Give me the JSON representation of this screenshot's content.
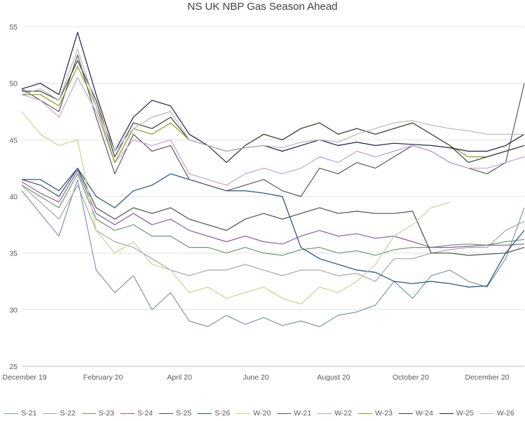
{
  "title": "NS UK NBP Gas Season Ahead",
  "chart_data": {
    "type": "line",
    "title": "NS UK NBP Gas Season Ahead",
    "xlabel": "",
    "ylabel": "",
    "ylim": [
      25,
      55
    ],
    "yticks": [
      25,
      30,
      35,
      40,
      45,
      50,
      55
    ],
    "xtick_labels": [
      "December 19",
      "February 20",
      "April 20",
      "June 20",
      "August 20",
      "October 20",
      "December 20"
    ],
    "grid": "horizontal",
    "legend": "bottom",
    "x_start": "December 19",
    "x_end": "December 20",
    "series": [
      {
        "name": "S-21",
        "color": "#7f98a8",
        "values": [
          40.5,
          38.5,
          36.5,
          41.5,
          33.5,
          31.5,
          33.0,
          30.0,
          31.5,
          29.0,
          28.5,
          29.5,
          28.7,
          29.3,
          28.6,
          29.0,
          28.5,
          29.5,
          29.8,
          30.4,
          32.5,
          31.0,
          33.0,
          33.5,
          32.5,
          32.0,
          34.5,
          39.0
        ]
      },
      {
        "name": "S-22",
        "color": "#a6a6a6",
        "values": [
          41.0,
          39.5,
          38.0,
          41.0,
          37.0,
          36.0,
          35.5,
          34.5,
          33.5,
          33.0,
          33.5,
          33.5,
          34.0,
          33.5,
          33.0,
          33.5,
          33.5,
          33.0,
          33.2,
          32.5,
          34.5,
          34.5,
          35.0,
          35.3,
          35.5,
          35.5,
          37.0,
          37.8
        ]
      },
      {
        "name": "S-23",
        "color": "#6c9a6c",
        "values": [
          41.0,
          40.0,
          39.0,
          42.0,
          38.0,
          37.0,
          37.5,
          36.5,
          36.5,
          35.5,
          35.5,
          35.0,
          35.5,
          35.0,
          34.8,
          35.3,
          35.5,
          35.0,
          35.2,
          34.8,
          35.3,
          35.5,
          35.5,
          35.7,
          35.8,
          35.7,
          36.0,
          36.2
        ]
      },
      {
        "name": "S-24",
        "color": "#8b5fa6",
        "values": [
          41.3,
          40.3,
          39.5,
          42.3,
          38.5,
          37.5,
          38.5,
          37.5,
          38.0,
          37.0,
          36.5,
          36.0,
          36.5,
          36.0,
          35.8,
          36.5,
          37.0,
          36.5,
          36.7,
          36.3,
          36.5,
          36.0,
          35.5,
          35.5,
          35.6,
          35.7,
          35.7,
          35.8
        ]
      },
      {
        "name": "S-25",
        "color": "#4d4d4d",
        "values": [
          41.5,
          41.0,
          40.0,
          42.5,
          39.0,
          38.0,
          39.0,
          38.5,
          39.0,
          38.0,
          37.5,
          37.0,
          38.0,
          38.5,
          38.0,
          38.5,
          39.0,
          38.5,
          38.7,
          38.5,
          38.5,
          38.7,
          35.0,
          35.0,
          34.8,
          34.9,
          35.0,
          35.5
        ]
      },
      {
        "name": "S-26",
        "color": "#1f4e79",
        "values": [
          41.5,
          41.5,
          40.5,
          42.5,
          40.0,
          39.0,
          40.5,
          41.0,
          42.0,
          41.5,
          41.0,
          40.5,
          40.5,
          40.3,
          40.0,
          35.5,
          34.5,
          34.0,
          33.5,
          33.3,
          32.5,
          32.3,
          32.5,
          32.3,
          32.0,
          32.1,
          35.0,
          37.0
        ]
      },
      {
        "name": "W-20",
        "color": "#c5d68a",
        "values": [
          47.5,
          45.5,
          44.5,
          45.0,
          37.0,
          35.0,
          36.0,
          34.0,
          33.5,
          31.5,
          32.0,
          31.0,
          31.5,
          32.0,
          31.0,
          30.5,
          32.0,
          31.5,
          32.5,
          34.0,
          36.5,
          37.5,
          39.0,
          39.5,
          null,
          null,
          null,
          null
        ]
      },
      {
        "name": "W-21",
        "color": "#595959",
        "values": [
          49.5,
          48.5,
          47.5,
          52.5,
          47.0,
          42.0,
          45.5,
          44.0,
          44.5,
          41.5,
          41.0,
          40.5,
          41.0,
          41.5,
          40.5,
          40.0,
          42.5,
          42.0,
          43.0,
          42.5,
          43.5,
          44.5,
          44.0,
          43.0,
          42.5,
          42.0,
          43.0,
          50.0
        ]
      },
      {
        "name": "W-22",
        "color": "#c7a0d3",
        "values": [
          49.0,
          48.5,
          47.0,
          50.5,
          47.5,
          43.0,
          45.0,
          44.5,
          45.0,
          42.0,
          41.5,
          41.0,
          42.0,
          42.5,
          42.0,
          42.5,
          43.5,
          43.0,
          44.0,
          43.5,
          44.0,
          44.5,
          44.0,
          43.0,
          42.5,
          42.5,
          43.0,
          43.5
        ]
      },
      {
        "name": "W-23",
        "color": "#8c9a1b",
        "values": [
          49.0,
          49.0,
          48.0,
          51.5,
          48.0,
          43.0,
          46.0,
          45.5,
          46.5,
          45.0,
          44.5,
          43.0,
          44.5,
          45.5,
          45.0,
          46.0,
          46.5,
          45.5,
          46.0,
          45.5,
          46.0,
          46.5,
          45.5,
          44.5,
          43.5,
          43.5,
          44.0,
          44.5
        ]
      },
      {
        "name": "W-24",
        "color": "#3d3d3d",
        "values": [
          49.3,
          49.3,
          48.5,
          52.0,
          48.5,
          43.5,
          46.5,
          46.0,
          47.0,
          45.0,
          44.5,
          43.0,
          44.5,
          45.5,
          45.0,
          46.0,
          46.5,
          45.5,
          46.0,
          45.5,
          46.0,
          46.5,
          45.5,
          44.5,
          43.0,
          43.5,
          44.0,
          44.5
        ]
      },
      {
        "name": "W-25",
        "color": "#1f1f4f",
        "values": [
          49.5,
          50.0,
          49.0,
          54.5,
          49.0,
          44.0,
          47.0,
          48.5,
          48.0,
          45.5,
          44.5,
          44.0,
          44.3,
          44.5,
          44.0,
          44.5,
          45.0,
          44.5,
          44.8,
          44.5,
          44.7,
          44.6,
          44.5,
          44.3,
          44.0,
          44.0,
          44.5,
          45.5
        ]
      },
      {
        "name": "W-26",
        "color": "#b8b8b8",
        "values": [
          49.0,
          49.5,
          48.5,
          53.0,
          48.0,
          44.0,
          46.0,
          47.0,
          47.5,
          45.0,
          44.5,
          44.0,
          44.3,
          44.5,
          44.3,
          44.8,
          45.0,
          44.8,
          45.5,
          46.0,
          46.5,
          46.7,
          46.3,
          46.0,
          45.8,
          45.5,
          45.5,
          45.5
        ]
      }
    ]
  }
}
